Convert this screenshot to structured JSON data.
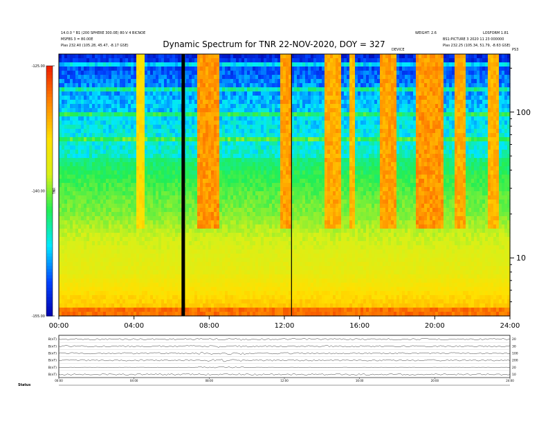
{
  "header": {
    "title": "Dynamic Spectrum for TNR 22-NOV-2020, DOY = 327",
    "left_info": [
      "14.0.0 ° B1 (200 SPHERE 300.0E) 80:V 4 BICNOE",
      "MSFBS 3 = 80.00E",
      "Plas    232.40 (105.28, 45.47, -8.17 GSE)"
    ],
    "right_info": [
      "WEIGHT: 2.6",
      "BS1:PICTURE 3 2020 11 23 000000",
      "Plas    232.25 (105.34, 51.79, -8.63 GSE)"
    ],
    "right_top_label": "LOSFORM 1.81",
    "mid_label": "DEVICE",
    "corner_label": "PS3"
  },
  "colorbar": {
    "ticks": [
      "-125.00",
      "-140.00",
      "-155.00"
    ],
    "unit": "TNR"
  },
  "footer": {
    "label": "Status"
  },
  "chart_data": {
    "type": "heatmap",
    "title": "Dynamic Spectrum for TNR 22-NOV-2020, DOY = 327",
    "x_ticks": [
      "00:00",
      "04:00",
      "08:00",
      "12:00",
      "16:00",
      "20:00",
      "24:00"
    ],
    "x_range_hours": [
      0,
      24
    ],
    "y_scale": "log",
    "y_ticks": [
      10,
      100
    ],
    "y_range": [
      4,
      250
    ],
    "z_range": [
      -155,
      -125
    ],
    "colormap": [
      "#0000aa",
      "#0044ff",
      "#00e8ff",
      "#22ee55",
      "#d8f018",
      "#ffe000",
      "#ff8800",
      "#ee2200"
    ],
    "data_gaps_hours": [
      6.62,
      12.38
    ],
    "storm_bands": [
      {
        "start": 4.1,
        "end": 4.6,
        "level": 0.55
      },
      {
        "start": 7.4,
        "end": 8.6,
        "level": 0.95
      },
      {
        "start": 11.8,
        "end": 12.3,
        "level": 0.9
      },
      {
        "start": 14.2,
        "end": 15.0,
        "level": 0.85
      },
      {
        "start": 15.4,
        "end": 15.8,
        "level": 0.75
      },
      {
        "start": 17.1,
        "end": 18.0,
        "level": 0.9
      },
      {
        "start": 19.0,
        "end": 20.4,
        "level": 0.95
      },
      {
        "start": 21.0,
        "end": 21.6,
        "level": 0.85
      },
      {
        "start": 22.8,
        "end": 23.4,
        "level": 0.8
      }
    ],
    "panel_channels": [
      {
        "name": "B(nT)",
        "right": "20"
      },
      {
        "name": "B(nT)",
        "right": "30"
      },
      {
        "name": "B(nT)",
        "right": "100"
      },
      {
        "name": "B(nT)",
        "right": "200"
      },
      {
        "name": "B(nT)",
        "right": "20"
      },
      {
        "name": "B(nT)",
        "right": "10"
      }
    ],
    "panel_x_ticks": [
      "00:00",
      "04:00",
      "08:00",
      "12:00",
      "16:00",
      "20:00",
      "24:00"
    ]
  }
}
